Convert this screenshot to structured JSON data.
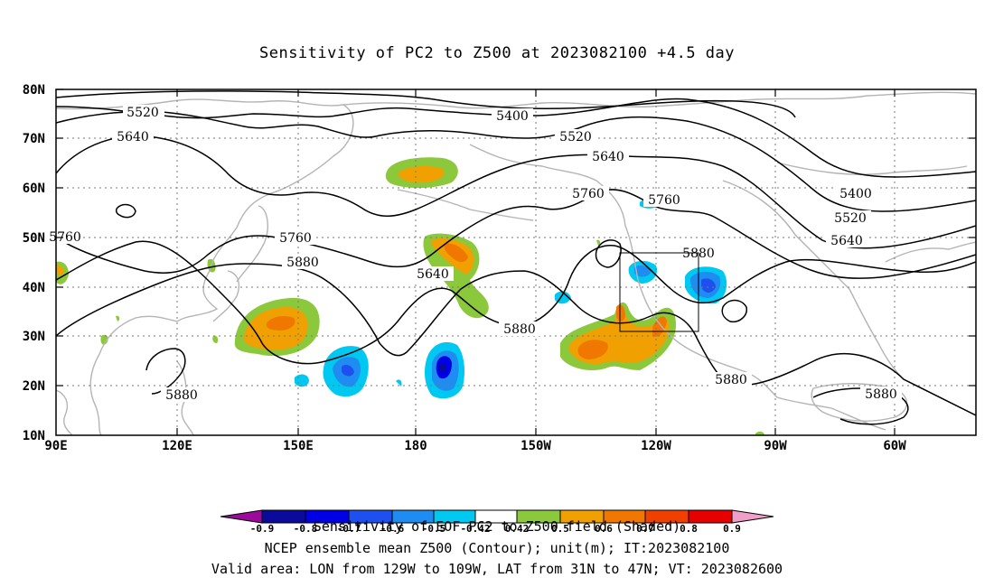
{
  "title": "Sensitivity of PC2 to Z500 at 2023082100 +4.5 day",
  "lat_labels": [
    "80N",
    "70N",
    "60N",
    "50N",
    "40N",
    "30N",
    "20N",
    "10N"
  ],
  "lon_labels": [
    "90E",
    "120E",
    "150E",
    "180",
    "150W",
    "120W",
    "90W",
    "60W"
  ],
  "contour_labels": {
    "c5520_a": "5520",
    "c5640_a": "5640",
    "c5400_a": "5400",
    "c5520_b": "5520",
    "c5640_b": "5640",
    "c5760_a": "5760",
    "c5760_b": "5760",
    "c5760_c": "5760",
    "c5760_d": "5760",
    "c5880_a": "5880",
    "c5640_c": "5640",
    "c5880_b": "5880",
    "c5880_c": "5880",
    "c5880_d": "5880",
    "c5880_e": "5880",
    "c5880_f": "5880",
    "c5400_b": "5400",
    "c5520_c": "5520",
    "c5640_d": "5640"
  },
  "colorbar": {
    "ticks": [
      "-0.9",
      "-0.8",
      "-0.7",
      "-0.6",
      "-0.5",
      "-0.42",
      "0.42",
      "0.5",
      "0.6",
      "0.7",
      "0.8",
      "0.9"
    ],
    "colors": [
      "#9b0a9b",
      "#0a0a9b",
      "#0000e6",
      "#1e50f0",
      "#1e8cf0",
      "#00c8f0",
      "#ffffff",
      "#8cc83c",
      "#f0a000",
      "#f07800",
      "#f04000",
      "#e60000",
      "#f0a0c8"
    ]
  },
  "footer": {
    "line1": "Sensitivity of EOF PC2 to Z500 field (Shaded)",
    "line2": "NCEP ensemble mean Z500 (Contour); unit(m); IT:2023082100",
    "line3": "Valid area: LON from 129W to 109W, LAT from 31N to 47N; VT: 2023082600"
  },
  "valid_area": {
    "lon_from": "129W",
    "lon_to": "109W",
    "lat_from": "31N",
    "lat_to": "47N"
  }
}
